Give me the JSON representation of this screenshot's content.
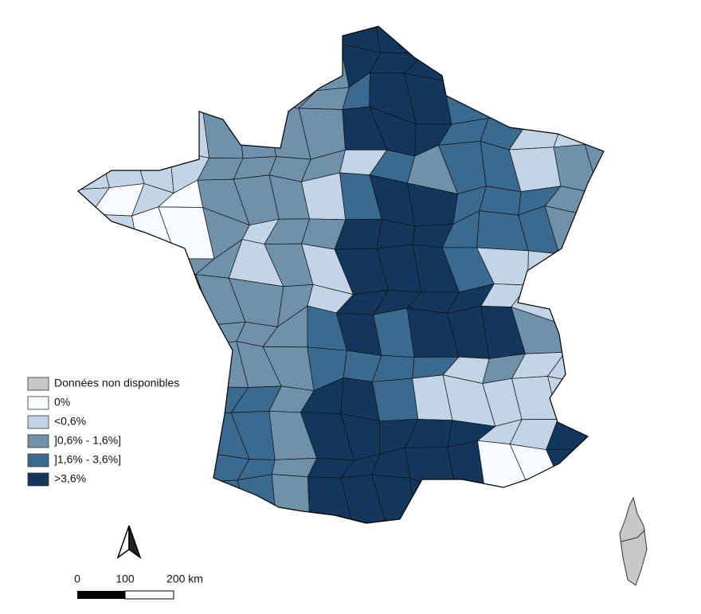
{
  "legend": {
    "items": [
      {
        "label": "Données non disponibles",
        "color": "#c8c8c8"
      },
      {
        "label": "0%",
        "color": "#f7fbff"
      },
      {
        "label": "<0,6%",
        "color": "#c3d4e7"
      },
      {
        "label": "]0,6% - 1,6%]",
        "color": "#6f92aa"
      },
      {
        "label": "]1,6% - 3,6%]",
        "color": "#3a6a90"
      },
      {
        "label": ">3,6%",
        "color": "#12365c"
      }
    ]
  },
  "scale_bar": {
    "labels": [
      "0",
      "100",
      "200 km"
    ]
  }
}
